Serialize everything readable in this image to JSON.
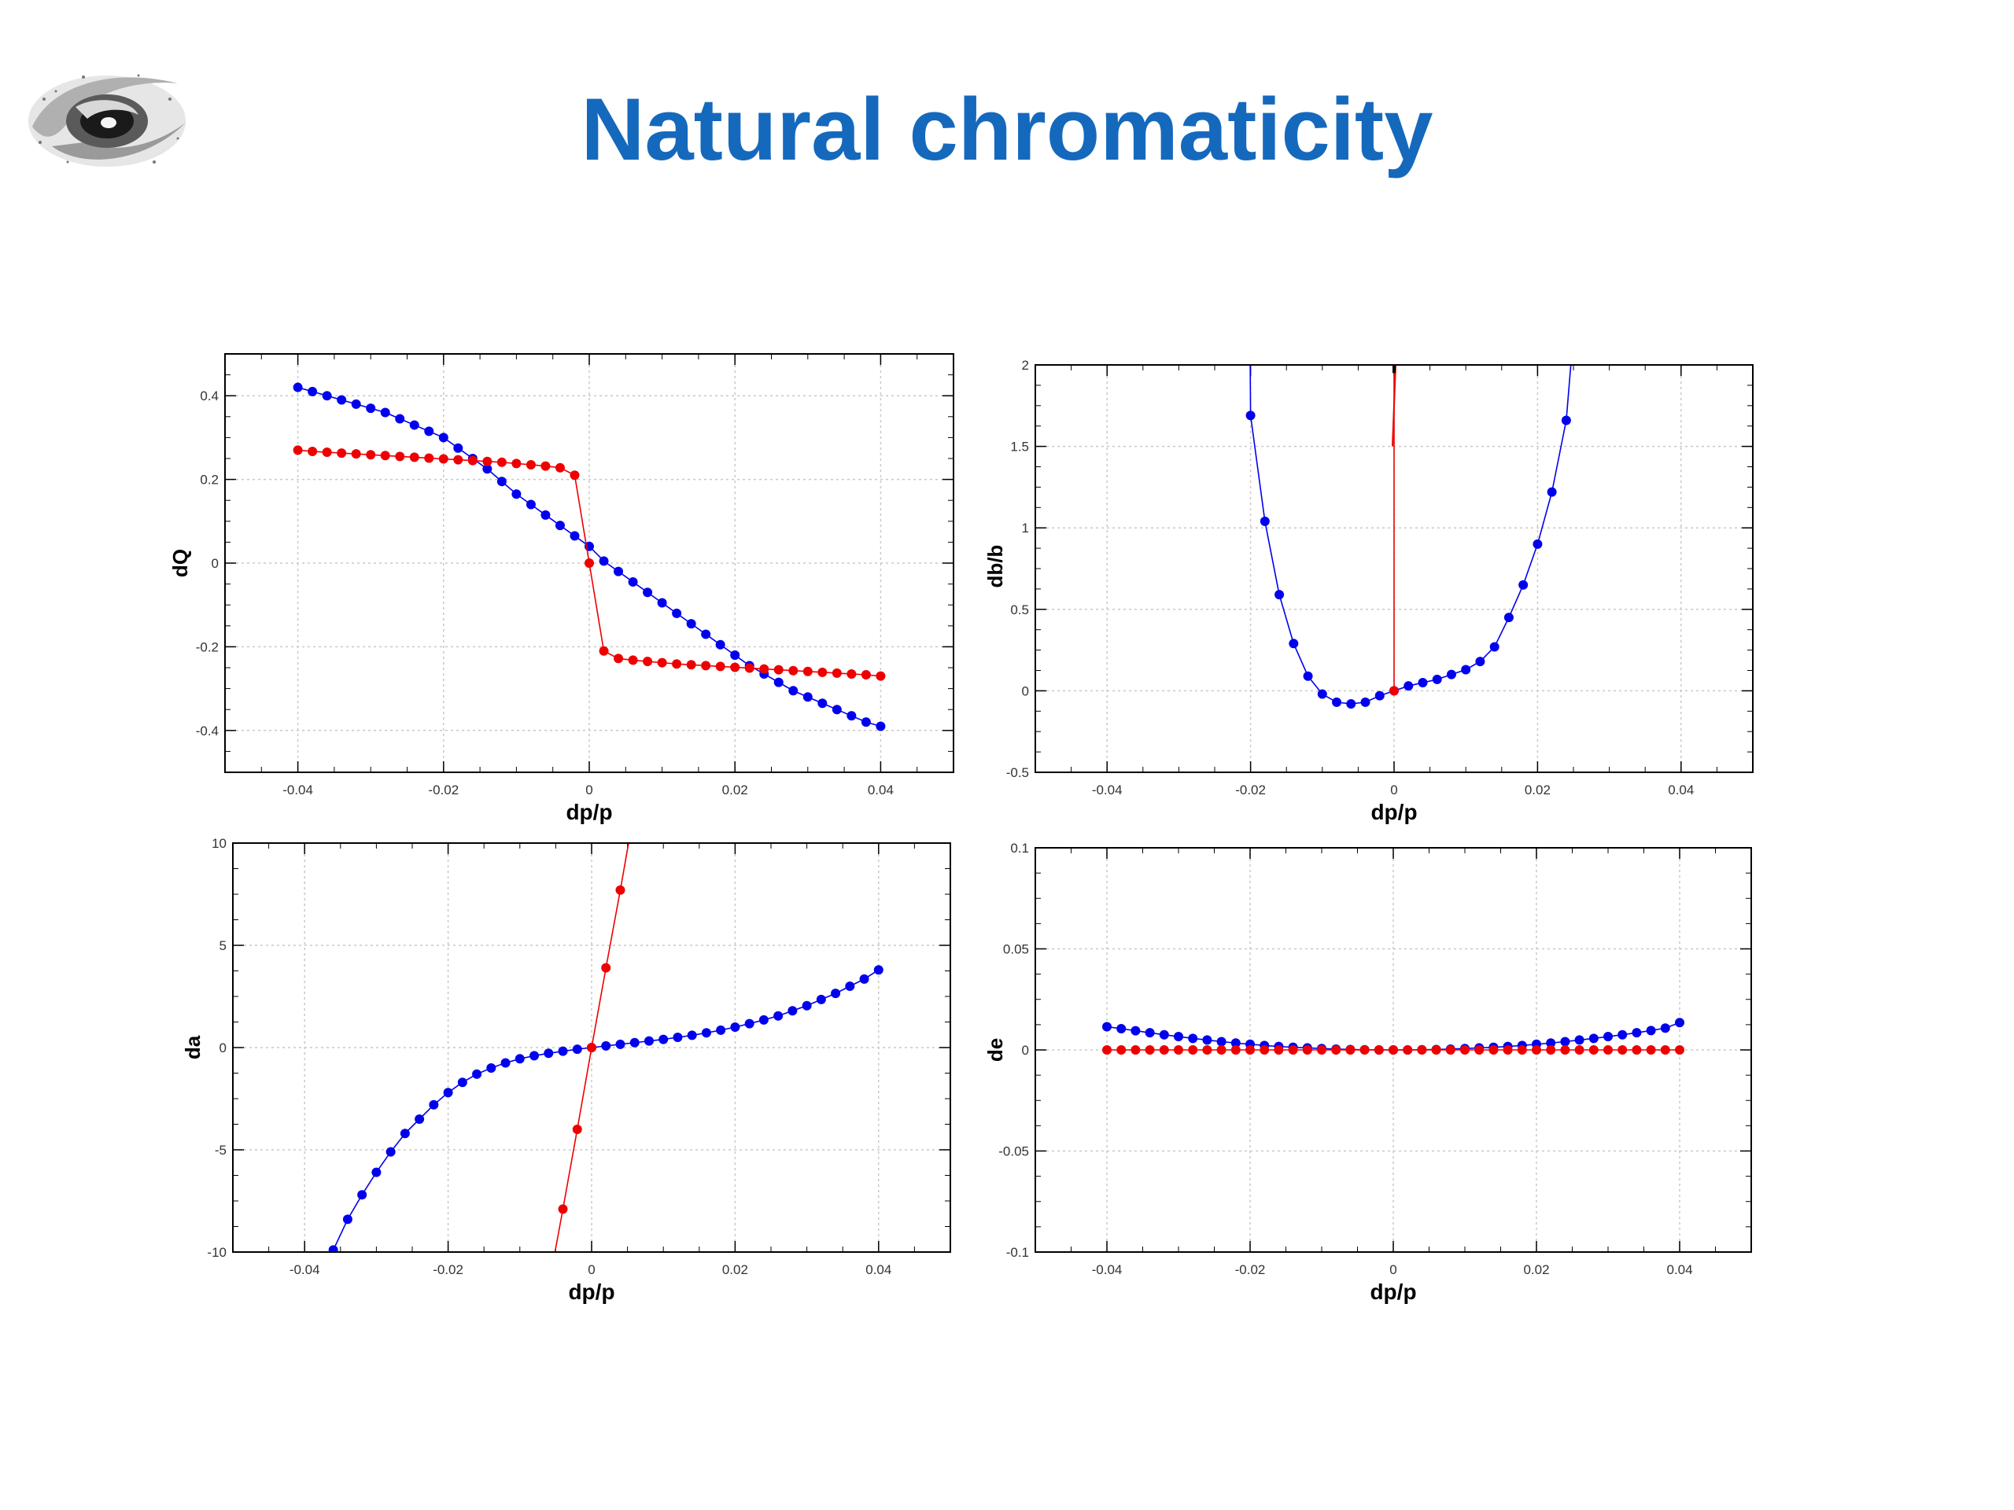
{
  "slide": {
    "title": "Natural chromaticity",
    "accent_color": "#1569bd"
  },
  "logo": {
    "icon": "institute-swirl-logo"
  },
  "series_colors": {
    "blue": "#0000ee",
    "red": "#ee0000"
  },
  "chart_data": [
    {
      "type": "scatter",
      "ylabel": "dQ",
      "xlabel": "dp/p",
      "xlim": [
        -0.05,
        0.05
      ],
      "ylim": [
        -0.5,
        0.5
      ],
      "xticks": [
        -0.04,
        -0.02,
        0,
        0.02,
        0.04
      ],
      "xtick_labels": [
        "-0.04",
        "-0.02",
        "0",
        "0.02",
        "0.04"
      ],
      "yticks": [
        -0.4,
        -0.2,
        0,
        0.2,
        0.4
      ],
      "ytick_labels": [
        "-0.4",
        "-0.2",
        "0",
        "0.2",
        "0.4"
      ],
      "grid": true,
      "series": [
        {
          "color": "#0000ee",
          "x": [
            -0.04,
            -0.038,
            -0.036,
            -0.034,
            -0.032,
            -0.03,
            -0.028,
            -0.026,
            -0.024,
            -0.022,
            -0.02,
            -0.018,
            -0.016,
            -0.014,
            -0.012,
            -0.01,
            -0.008,
            -0.006,
            -0.004,
            -0.002,
            0,
            0.002,
            0.004,
            0.006,
            0.008,
            0.01,
            0.012,
            0.014,
            0.016,
            0.018,
            0.02,
            0.022,
            0.024,
            0.026,
            0.028,
            0.03,
            0.032,
            0.034,
            0.036,
            0.038,
            0.04
          ],
          "y": [
            0.42,
            0.41,
            0.4,
            0.39,
            0.38,
            0.37,
            0.36,
            0.345,
            0.33,
            0.315,
            0.3,
            0.275,
            0.25,
            0.225,
            0.195,
            0.165,
            0.14,
            0.115,
            0.09,
            0.065,
            0.04,
            0.005,
            -0.02,
            -0.045,
            -0.07,
            -0.095,
            -0.12,
            -0.145,
            -0.17,
            -0.195,
            -0.22,
            -0.245,
            -0.265,
            -0.285,
            -0.305,
            -0.32,
            -0.335,
            -0.35,
            -0.365,
            -0.38,
            -0.39
          ]
        },
        {
          "color": "#ee0000",
          "x": [
            -0.04,
            -0.038,
            -0.036,
            -0.034,
            -0.032,
            -0.03,
            -0.028,
            -0.026,
            -0.024,
            -0.022,
            -0.02,
            -0.018,
            -0.016,
            -0.014,
            -0.012,
            -0.01,
            -0.008,
            -0.006,
            -0.004,
            -0.002,
            0,
            0.002,
            0.004,
            0.006,
            0.008,
            0.01,
            0.012,
            0.014,
            0.016,
            0.018,
            0.02,
            0.022,
            0.024,
            0.026,
            0.028,
            0.03,
            0.032,
            0.034,
            0.036,
            0.038,
            0.04
          ],
          "y": [
            0.27,
            0.267,
            0.265,
            0.263,
            0.261,
            0.259,
            0.257,
            0.255,
            0.253,
            0.251,
            0.249,
            0.247,
            0.245,
            0.243,
            0.241,
            0.238,
            0.235,
            0.232,
            0.228,
            0.21,
            0,
            -0.21,
            -0.228,
            -0.232,
            -0.235,
            -0.238,
            -0.241,
            -0.243,
            -0.245,
            -0.247,
            -0.249,
            -0.251,
            -0.253,
            -0.255,
            -0.257,
            -0.259,
            -0.261,
            -0.263,
            -0.265,
            -0.267,
            -0.27
          ]
        }
      ]
    },
    {
      "type": "scatter",
      "ylabel": "db/b",
      "xlabel": "dp/p",
      "xlim": [
        -0.05,
        0.05
      ],
      "ylim": [
        -0.5,
        2
      ],
      "xticks": [
        -0.04,
        -0.02,
        0,
        0.02,
        0.04
      ],
      "xtick_labels": [
        "-0.04",
        "-0.02",
        "0",
        "0.02",
        "0.04"
      ],
      "yticks": [
        -0.5,
        0,
        0.5,
        1,
        1.5,
        2
      ],
      "ytick_labels": [
        "-0.5",
        "0",
        "0.5",
        "1",
        "1.5",
        "2"
      ],
      "grid": true,
      "series": [
        {
          "color": "#0000ee",
          "x": [
            -0.02,
            -0.018,
            -0.016,
            -0.014,
            -0.012,
            -0.01,
            -0.008,
            -0.006,
            -0.004,
            -0.002,
            0,
            0.002,
            0.004,
            0.006,
            0.008,
            0.01,
            0.012,
            0.014,
            0.016,
            0.018,
            0.02,
            0.022,
            0.024
          ],
          "y": [
            1.69,
            1.04,
            0.59,
            0.29,
            0.09,
            -0.02,
            -0.07,
            -0.08,
            -0.07,
            -0.03,
            0,
            0.03,
            0.05,
            0.07,
            0.1,
            0.13,
            0.18,
            0.27,
            0.45,
            0.65,
            0.9,
            1.22,
            1.66
          ]
        },
        {
          "color": "#ee0000",
          "x": [
            0
          ],
          "y": [
            0
          ],
          "spike_x": 0,
          "spike_y": [
            0,
            2
          ]
        }
      ]
    },
    {
      "type": "scatter",
      "ylabel": "da",
      "xlabel": "dp/p",
      "xlim": [
        -0.05,
        0.05
      ],
      "ylim": [
        -10,
        10
      ],
      "xticks": [
        -0.04,
        -0.02,
        0,
        0.02,
        0.04
      ],
      "xtick_labels": [
        "-0.04",
        "-0.02",
        "0",
        "0.02",
        "0.04"
      ],
      "yticks": [
        -10,
        -5,
        0,
        5,
        10
      ],
      "ytick_labels": [
        "-10",
        "-5",
        "0",
        "5",
        "10"
      ],
      "grid": true,
      "series": [
        {
          "color": "#0000ee",
          "x": [
            -0.036,
            -0.034,
            -0.032,
            -0.03,
            -0.028,
            -0.026,
            -0.024,
            -0.022,
            -0.02,
            -0.018,
            -0.016,
            -0.014,
            -0.012,
            -0.01,
            -0.008,
            -0.006,
            -0.004,
            -0.002,
            0,
            0.002,
            0.004,
            0.006,
            0.008,
            0.01,
            0.012,
            0.014,
            0.016,
            0.018,
            0.02,
            0.022,
            0.024,
            0.026,
            0.028,
            0.03,
            0.032,
            0.034,
            0.036,
            0.038,
            0.04
          ],
          "y": [
            -9.9,
            -8.4,
            -7.2,
            -6.1,
            -5.1,
            -4.2,
            -3.5,
            -2.8,
            -2.2,
            -1.7,
            -1.3,
            -1.0,
            -0.75,
            -0.55,
            -0.4,
            -0.28,
            -0.18,
            -0.08,
            0,
            0.08,
            0.16,
            0.24,
            0.32,
            0.4,
            0.5,
            0.6,
            0.72,
            0.85,
            1.0,
            1.17,
            1.35,
            1.55,
            1.8,
            2.05,
            2.35,
            2.65,
            3.0,
            3.35,
            3.8
          ]
        },
        {
          "color": "#ee0000",
          "x": [
            -0.004,
            -0.002,
            0,
            0.002,
            0.004
          ],
          "y": [
            -7.9,
            -4.0,
            0,
            3.9,
            7.7
          ],
          "line_extends": true
        }
      ]
    },
    {
      "type": "scatter",
      "ylabel": "de",
      "xlabel": "dp/p",
      "xlim": [
        -0.05,
        0.05
      ],
      "ylim": [
        -0.1,
        0.1
      ],
      "xticks": [
        -0.04,
        -0.02,
        0,
        0.02,
        0.04
      ],
      "xtick_labels": [
        "-0.04",
        "-0.02",
        "0",
        "0.02",
        "0.04"
      ],
      "yticks": [
        -0.1,
        -0.05,
        0,
        0.05,
        0.1
      ],
      "ytick_labels": [
        "-0.1",
        "-0.05",
        "0",
        "0.05",
        "0.1"
      ],
      "grid": true,
      "series": [
        {
          "color": "#0000ee",
          "x": [
            -0.04,
            -0.038,
            -0.036,
            -0.034,
            -0.032,
            -0.03,
            -0.028,
            -0.026,
            -0.024,
            -0.022,
            -0.02,
            -0.018,
            -0.016,
            -0.014,
            -0.012,
            -0.01,
            -0.008,
            -0.006,
            -0.004,
            -0.002,
            0,
            0.002,
            0.004,
            0.006,
            0.008,
            0.01,
            0.012,
            0.014,
            0.016,
            0.018,
            0.02,
            0.022,
            0.024,
            0.026,
            0.028,
            0.03,
            0.032,
            0.034,
            0.036,
            0.038,
            0.04
          ],
          "y": [
            0.0115,
            0.0105,
            0.0095,
            0.0085,
            0.0075,
            0.0066,
            0.0057,
            0.0049,
            0.0041,
            0.0034,
            0.0028,
            0.0022,
            0.0017,
            0.0013,
            0.001,
            0.0007,
            0.0004,
            0.0002,
            0.0001,
            0,
            0,
            0,
            0.0001,
            0.0002,
            0.0004,
            0.0007,
            0.001,
            0.0013,
            0.0017,
            0.0022,
            0.0028,
            0.0034,
            0.0041,
            0.0049,
            0.0057,
            0.0066,
            0.0075,
            0.0085,
            0.0096,
            0.0108,
            0.0135
          ]
        },
        {
          "color": "#ee0000",
          "x": [
            -0.04,
            -0.038,
            -0.036,
            -0.034,
            -0.032,
            -0.03,
            -0.028,
            -0.026,
            -0.024,
            -0.022,
            -0.02,
            -0.018,
            -0.016,
            -0.014,
            -0.012,
            -0.01,
            -0.008,
            -0.006,
            -0.004,
            -0.002,
            0,
            0.002,
            0.004,
            0.006,
            0.008,
            0.01,
            0.012,
            0.014,
            0.016,
            0.018,
            0.02,
            0.022,
            0.024,
            0.026,
            0.028,
            0.03,
            0.032,
            0.034,
            0.036,
            0.038,
            0.04
          ],
          "y": [
            0,
            0,
            0,
            0,
            0,
            0,
            0,
            0,
            0,
            0,
            0,
            0,
            0,
            0,
            0,
            0,
            0,
            0,
            0,
            0,
            0,
            0,
            0,
            0,
            0,
            0,
            0,
            0,
            0,
            0,
            0,
            0,
            0,
            0,
            0,
            0,
            0,
            0,
            0,
            0,
            0
          ]
        }
      ]
    }
  ]
}
